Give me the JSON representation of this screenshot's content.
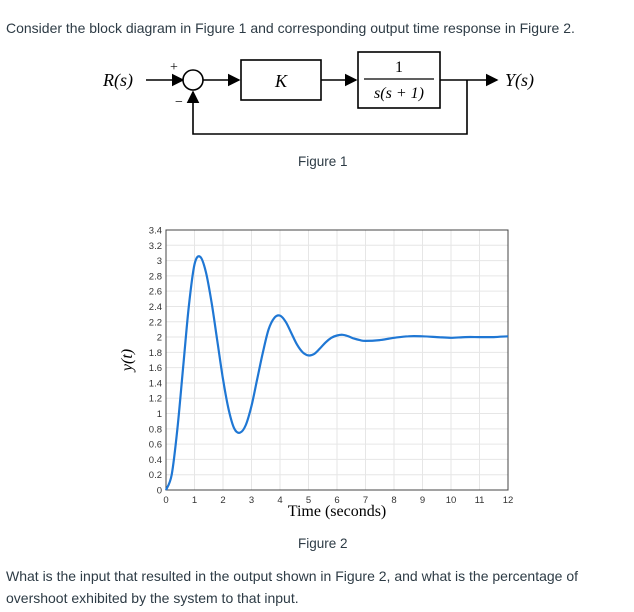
{
  "intro_text": "Consider the block diagram in Figure 1 and corresponding output time response in Figure 2.",
  "diagram": {
    "input_label": "R(s)",
    "output_label": "Y(s)",
    "plus_sign": "+",
    "minus_sign": "−",
    "controller_label": "K",
    "plant_numerator": "1",
    "plant_denominator": "s(s + 1)",
    "caption": "Figure 1"
  },
  "chart_data": {
    "type": "line",
    "title": "",
    "xlabel": "Time (seconds)",
    "ylabel": "y(t)",
    "xlim": [
      0,
      12
    ],
    "ylim": [
      0,
      3.4
    ],
    "xticks": [
      "0",
      "1",
      "2",
      "3",
      "4",
      "5",
      "6",
      "7",
      "8",
      "9",
      "10",
      "11",
      "12"
    ],
    "yticks": [
      "0",
      "0.2",
      "0.4",
      "0.6",
      "0.8",
      "1",
      "1.2",
      "1.4",
      "1.6",
      "1.8",
      "2",
      "2.2",
      "2.4",
      "2.6",
      "2.8",
      "3",
      "3.2",
      "3.4"
    ],
    "grid": true,
    "series": [
      {
        "color": "#1f77d4",
        "x": [
          0,
          0.2,
          0.4,
          0.6,
          0.8,
          1.0,
          1.2,
          1.4,
          1.6,
          1.8,
          2.0,
          2.2,
          2.4,
          2.6,
          2.8,
          3.0,
          3.2,
          3.4,
          3.6,
          3.8,
          4.0,
          4.2,
          4.4,
          4.6,
          4.8,
          5.0,
          5.2,
          5.4,
          5.6,
          5.8,
          6.0,
          6.2,
          6.4,
          6.6,
          6.8,
          7.0,
          7.5,
          8.0,
          8.5,
          9.0,
          9.5,
          10.0,
          10.5,
          11.0,
          11.5,
          12.0
        ],
        "y": [
          0,
          0.2,
          0.8,
          1.6,
          2.4,
          2.95,
          3.05,
          2.85,
          2.45,
          1.95,
          1.45,
          1.05,
          0.8,
          0.75,
          0.85,
          1.1,
          1.45,
          1.8,
          2.1,
          2.25,
          2.28,
          2.2,
          2.05,
          1.9,
          1.8,
          1.76,
          1.78,
          1.85,
          1.93,
          1.99,
          2.02,
          2.03,
          2.01,
          1.98,
          1.96,
          1.95,
          1.96,
          1.99,
          2.01,
          2.01,
          2.0,
          1.99,
          2.0,
          2.0,
          2.0,
          2.01
        ]
      }
    ]
  },
  "figure2_caption": "Figure 2",
  "question": {
    "line1": "What is the input that resulted in the output shown in Figure 2, and what is the percentage of",
    "line2": "overshoot exhibited by the system to that input."
  }
}
